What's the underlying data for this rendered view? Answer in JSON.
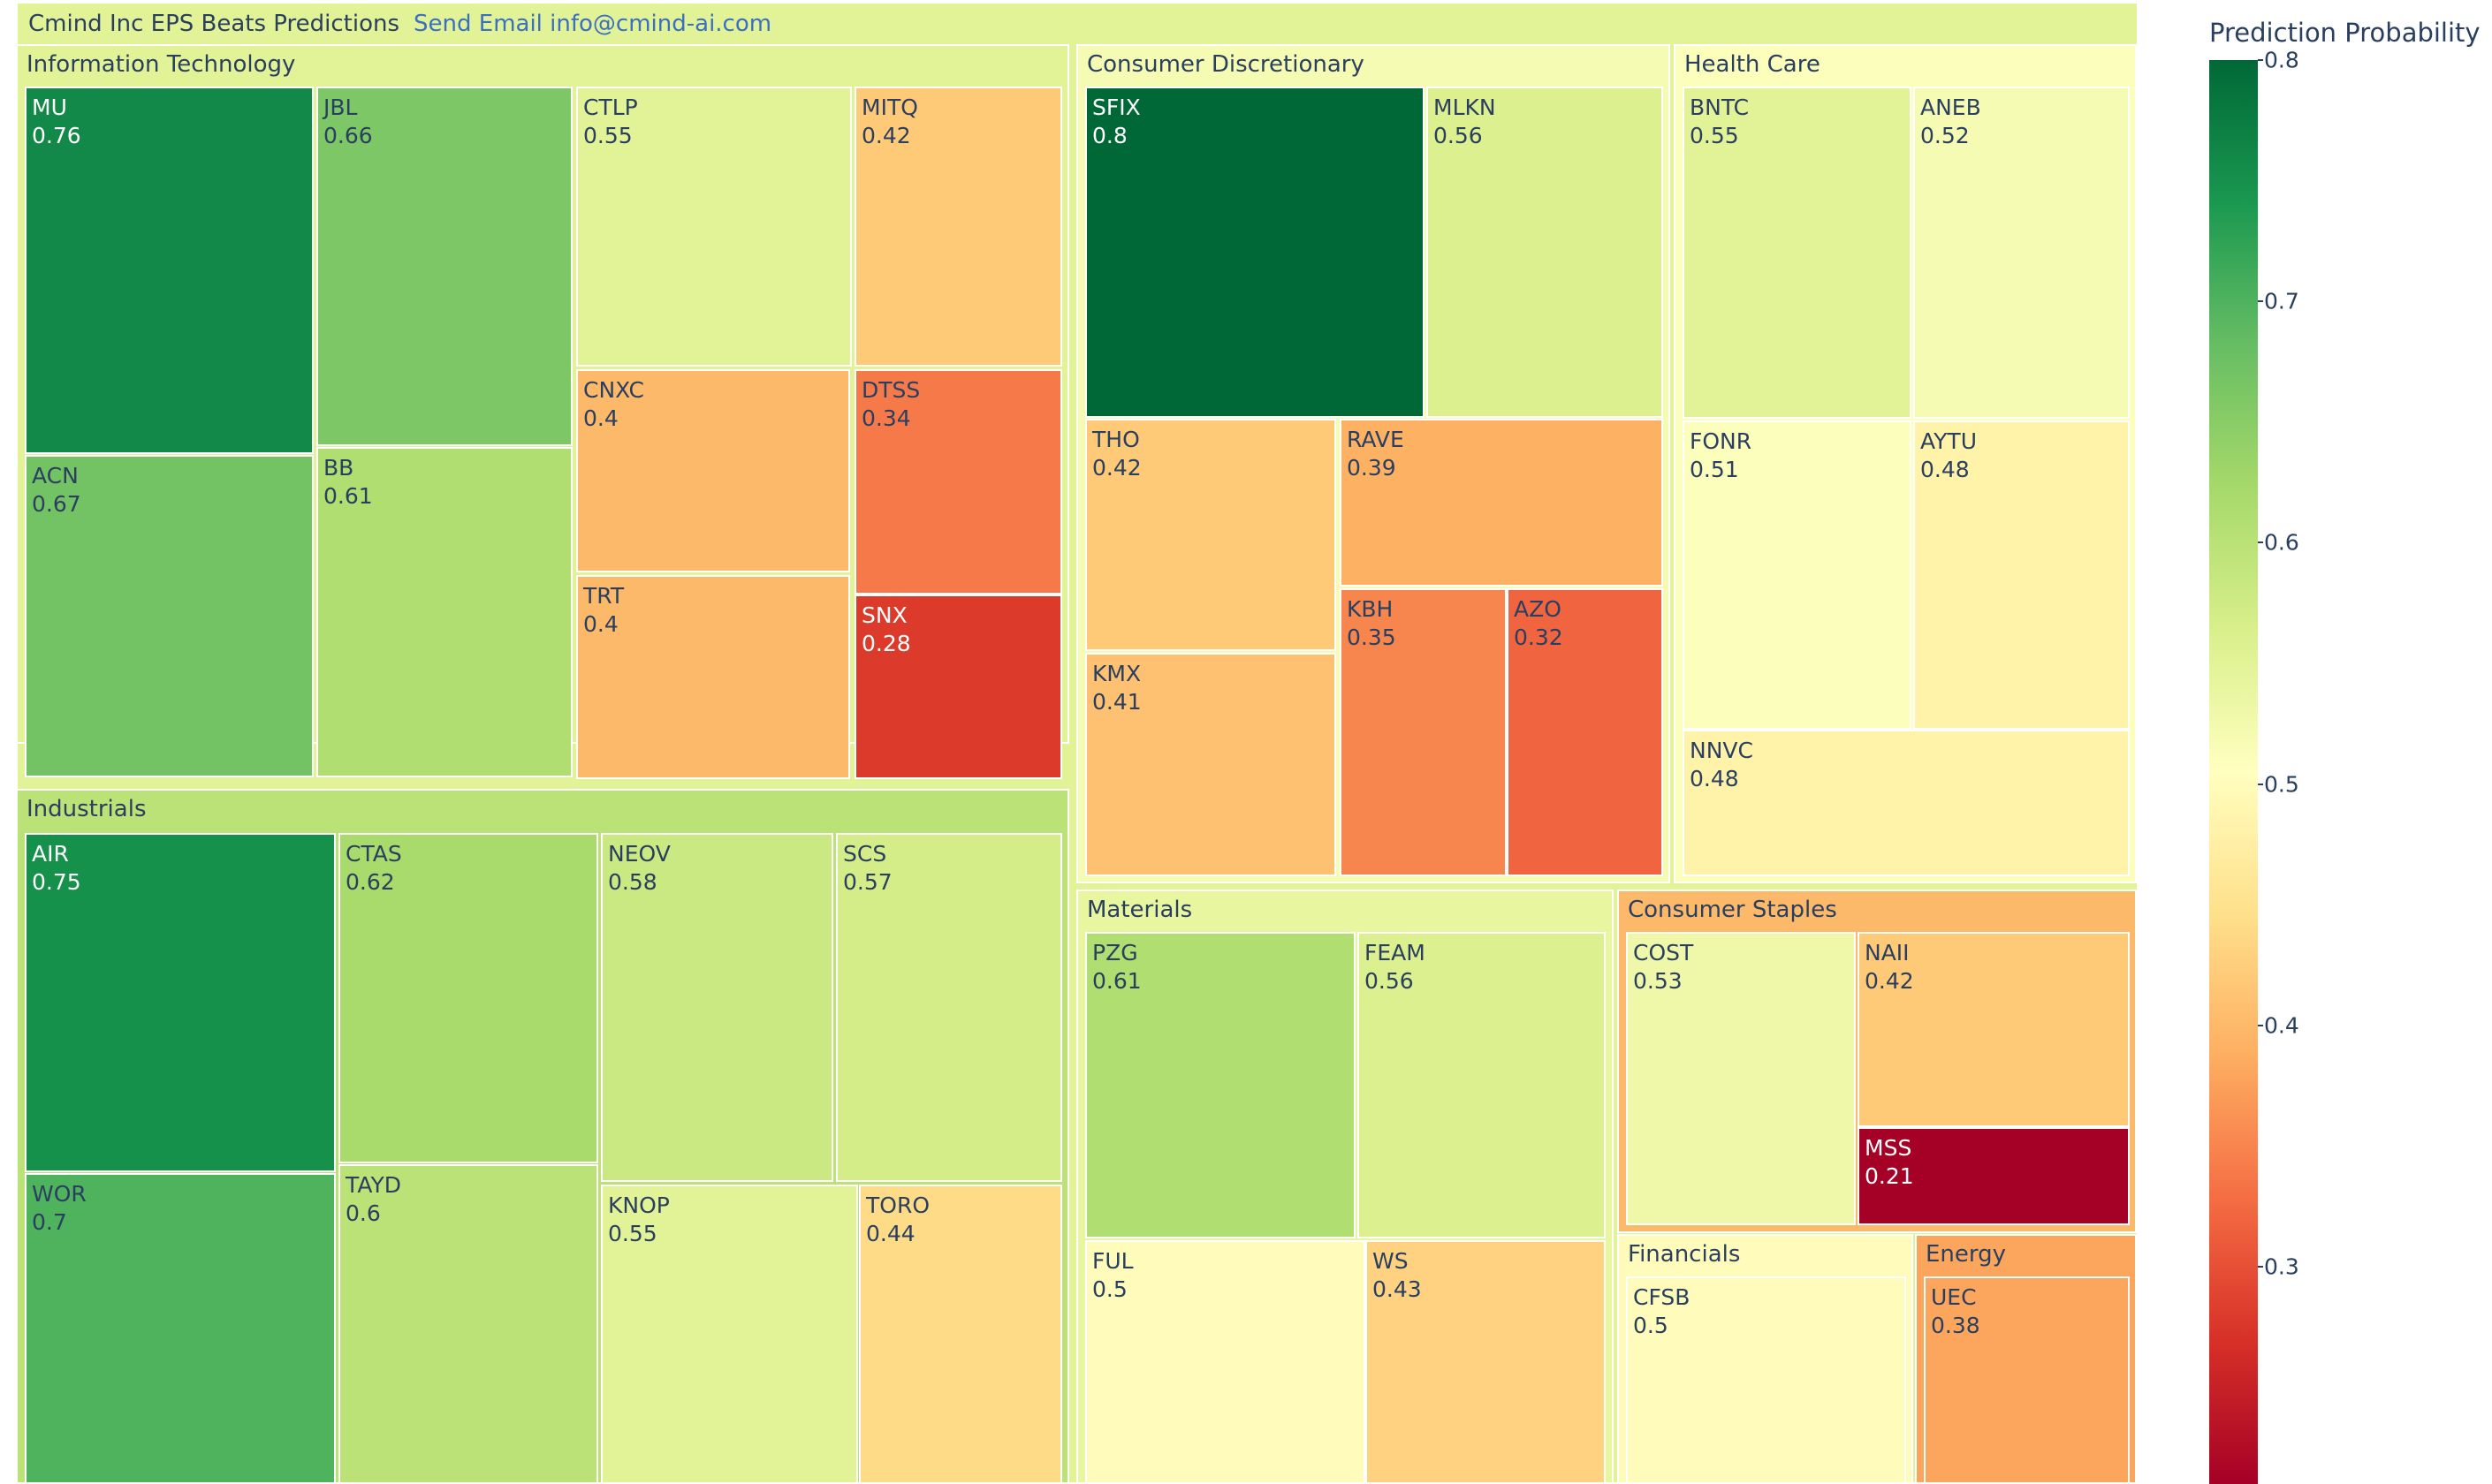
{
  "title": "Cmind Inc EPS Beats Predictions",
  "email_link": "Send Email info@cmind-ai.com",
  "colorbar": {
    "title": "Prediction Probability",
    "min": 0.21,
    "max": 0.8,
    "ticks": [
      "0.8",
      "0.7",
      "0.6",
      "0.5",
      "0.4",
      "0.3"
    ]
  },
  "chart_data": {
    "type": "treemap",
    "colorscale": "RdYlGn",
    "root_value": 0.55,
    "sectors": [
      {
        "name": "Information Technology",
        "value": 0.55,
        "items": [
          {
            "ticker": "MU",
            "value": 0.76
          },
          {
            "ticker": "ACN",
            "value": 0.67
          },
          {
            "ticker": "JBL",
            "value": 0.66
          },
          {
            "ticker": "BB",
            "value": 0.61
          },
          {
            "ticker": "CTLP",
            "value": 0.55
          },
          {
            "ticker": "MITQ",
            "value": 0.42
          },
          {
            "ticker": "CNXC",
            "value": 0.4
          },
          {
            "ticker": "DTSS",
            "value": 0.34
          },
          {
            "ticker": "TRT",
            "value": 0.4
          },
          {
            "ticker": "SNX",
            "value": 0.28
          }
        ]
      },
      {
        "name": "Industrials",
        "value": 0.6,
        "items": [
          {
            "ticker": "AIR",
            "value": 0.75
          },
          {
            "ticker": "WOR",
            "value": 0.7
          },
          {
            "ticker": "CTAS",
            "value": 0.62
          },
          {
            "ticker": "TAYD",
            "value": 0.6
          },
          {
            "ticker": "NEOV",
            "value": 0.58
          },
          {
            "ticker": "SCS",
            "value": 0.57
          },
          {
            "ticker": "KNOP",
            "value": 0.55
          },
          {
            "ticker": "TORO",
            "value": 0.44
          }
        ]
      },
      {
        "name": "Consumer Discretionary",
        "value": 0.52,
        "items": [
          {
            "ticker": "SFIX",
            "value": 0.8
          },
          {
            "ticker": "MLKN",
            "value": 0.56
          },
          {
            "ticker": "THO",
            "value": 0.42
          },
          {
            "ticker": "KMX",
            "value": 0.41
          },
          {
            "ticker": "RAVE",
            "value": 0.39
          },
          {
            "ticker": "KBH",
            "value": 0.35
          },
          {
            "ticker": "AZO",
            "value": 0.32
          }
        ]
      },
      {
        "name": "Health Care",
        "value": 0.51,
        "items": [
          {
            "ticker": "BNTC",
            "value": 0.55
          },
          {
            "ticker": "ANEB",
            "value": 0.52
          },
          {
            "ticker": "FONR",
            "value": 0.51
          },
          {
            "ticker": "AYTU",
            "value": 0.48
          },
          {
            "ticker": "NNVC",
            "value": 0.48
          }
        ]
      },
      {
        "name": "Materials",
        "value": 0.54,
        "items": [
          {
            "ticker": "PZG",
            "value": 0.61
          },
          {
            "ticker": "FEAM",
            "value": 0.56
          },
          {
            "ticker": "FUL",
            "value": 0.5
          },
          {
            "ticker": "WS",
            "value": 0.43
          }
        ]
      },
      {
        "name": "Consumer Staples",
        "value": 0.4,
        "items": [
          {
            "ticker": "COST",
            "value": 0.53
          },
          {
            "ticker": "NAII",
            "value": 0.42
          },
          {
            "ticker": "MSS",
            "value": 0.21
          }
        ]
      },
      {
        "name": "Financials",
        "value": 0.5,
        "items": [
          {
            "ticker": "CFSB",
            "value": 0.5
          }
        ]
      },
      {
        "name": "Energy",
        "value": 0.38,
        "items": [
          {
            "ticker": "UEC",
            "value": 0.38
          }
        ]
      }
    ]
  }
}
